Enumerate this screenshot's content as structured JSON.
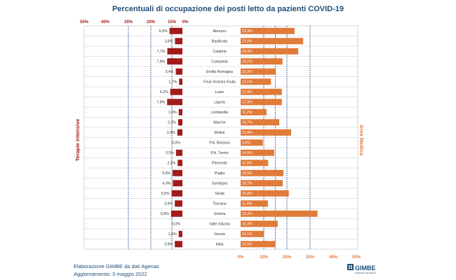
{
  "chart_data": {
    "type": "bar",
    "title": "Percentuali di occupazione dei posti letto da pazienti COVID-19",
    "left_axis_label": "Terapie intensive",
    "right_axis_label": "Area Medica",
    "left_ticks": [
      "50%",
      "40%",
      "30%",
      "20%",
      "10%",
      "0%"
    ],
    "right_ticks": [
      "0%",
      "10%",
      "20%",
      "30%",
      "40%",
      "50%"
    ],
    "xlim": [
      0,
      50
    ],
    "categories": [
      "Abruzzo",
      "Basilicata",
      "Calabria",
      "Campania",
      "Emilia Romagna",
      "Friuli Venezia Giulia",
      "Lazio",
      "Liguria",
      "Lombardia",
      "Marche",
      "Molise",
      "P.A. Bolzano",
      "P.A. Trento",
      "Piemonte",
      "Puglia",
      "Sardegna",
      "Sicilia",
      "Toscana",
      "Umbria",
      "Valle d'Aosta",
      "Veneto",
      "Italia"
    ],
    "series": [
      {
        "name": "Terapie intensive",
        "values": [
          6.6,
          3.8,
          7.7,
          7.8,
          3.4,
          1.7,
          6.2,
          7.8,
          1.9,
          2.2,
          2.6,
          0.0,
          3.3,
          2.4,
          5.0,
          4.9,
          5.5,
          3.9,
          5.8,
          0.0,
          1.9,
          3.9
        ],
        "labels": [
          "6,6%",
          "3,8%",
          "7,7%",
          "7,8%",
          "3,4%",
          "1,7%",
          "6,2%",
          "7,8%",
          "1,9%",
          "2,2%",
          "2,6%",
          "0,0%",
          "3,3%",
          "2,4%",
          "5,0%",
          "4,9%",
          "5,5%",
          "3,9%",
          "5,8%",
          "0,0%",
          "1,9%",
          "3,9%"
        ]
      },
      {
        "name": "Area Medica",
        "values": [
          23.3,
          27.0,
          24.9,
          18.1,
          15.2,
          13.1,
          17.8,
          17.8,
          11.2,
          16.7,
          21.8,
          9.6,
          14.5,
          11.9,
          18.5,
          18.2,
          20.8,
          11.8,
          33.2,
          16.0,
          10.1,
          15.0
        ],
        "labels": [
          "23,3%",
          "27,0%",
          "24,9%",
          "18,1%",
          "15,2%",
          "13,1%",
          "17,8%",
          "17,8%",
          "11,2%",
          "16,7%",
          "21,8%",
          "9,6%",
          "14,5%",
          "11,9%",
          "18,5%",
          "18,2%",
          "20,8%",
          "11,8%",
          "33,2%",
          "16,0%",
          "10,1%",
          "15,0%"
        ]
      }
    ],
    "thresholds": [
      10,
      15,
      20,
      30
    ],
    "grid": true
  },
  "colors": {
    "left_bar": "#a11b1b",
    "right_bar": "#e07b39",
    "title": "#1f4e79",
    "threshold_line": "#2e5d9a"
  },
  "footer": {
    "line1": "Elaborazione GIMBE da dati Agenas",
    "line2": "Aggiornamento: 3 maggio 2022"
  },
  "logo": {
    "name": "GIMBE",
    "tagline": "EVIDENCE FOR HEALTH"
  }
}
